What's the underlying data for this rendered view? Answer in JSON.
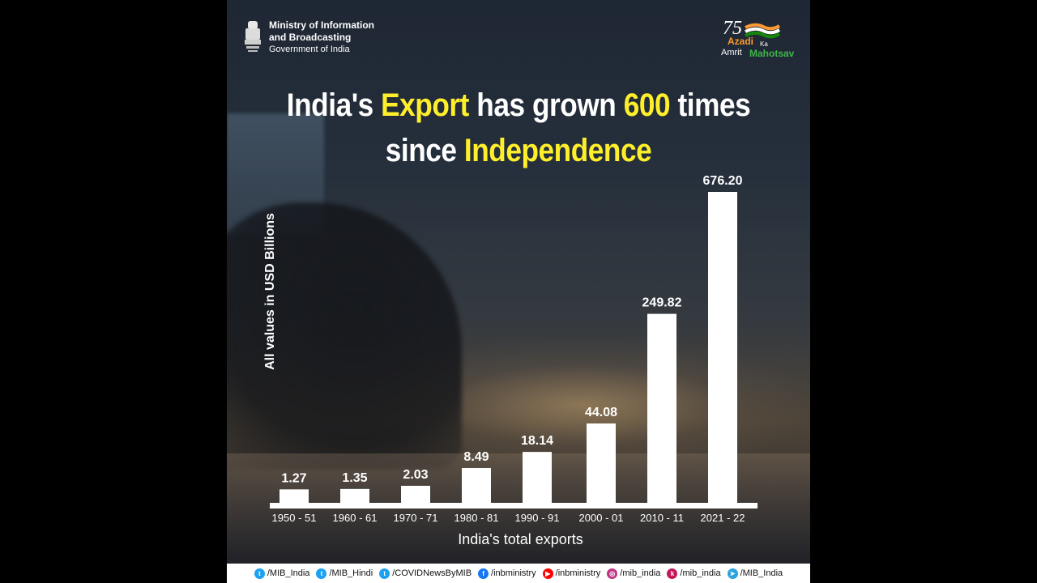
{
  "header": {
    "ministry_line1": "Ministry of Information",
    "ministry_line2": "and Broadcasting",
    "government": "Government of India"
  },
  "logo": {
    "number": "75",
    "azadi": "Azadi",
    "ka": "Ka",
    "amrit": "Amrit",
    "mahotsav": "Mahotsav"
  },
  "headline": {
    "part1": "India's ",
    "highlight1": "Export",
    "part2": " has grown ",
    "highlight2": "600",
    "part3": " times",
    "part4": "since ",
    "highlight3": "Independence"
  },
  "chart_data": {
    "type": "bar",
    "categories": [
      "1950 - 51",
      "1960 - 61",
      "1970 - 71",
      "1980 - 81",
      "1990 - 91",
      "2000 - 01",
      "2010 - 11",
      "2021 - 22"
    ],
    "values": [
      1.27,
      1.35,
      2.03,
      8.49,
      18.14,
      44.08,
      249.82,
      676.2
    ],
    "value_labels": [
      "1.27",
      "1.35",
      "2.03",
      "8.49",
      "18.14",
      "44.08",
      "249.82",
      "676.20"
    ],
    "ylabel": "All values in USD Billions",
    "xlabel": "India's total exports",
    "scale": "non-linear (bar heights not proportional)",
    "grid": false,
    "bar_color": "#ffffff"
  },
  "footer": {
    "handles": [
      {
        "icon": "twitter-icon",
        "text": "/MIB_India",
        "color": "#1da1f2"
      },
      {
        "icon": "twitter-icon",
        "text": "/MIB_Hindi",
        "color": "#1da1f2"
      },
      {
        "icon": "twitter-icon",
        "text": "/COVIDNewsByMIB",
        "color": "#1da1f2"
      },
      {
        "icon": "facebook-icon",
        "text": "/inbministry",
        "color": "#1877f2"
      },
      {
        "icon": "youtube-icon",
        "text": "/inbministry",
        "color": "#ff0000"
      },
      {
        "icon": "instagram-icon",
        "text": "/mib_india",
        "color": "#c13584"
      },
      {
        "icon": "koo-icon",
        "text": "/mib_india",
        "color": "#c2185b"
      },
      {
        "icon": "telegram-icon",
        "text": "/MIB_India",
        "color": "#2aa3df"
      }
    ]
  },
  "colors": {
    "highlight": "#ffef2b",
    "text": "#ffffff",
    "background": "#2a313b"
  }
}
